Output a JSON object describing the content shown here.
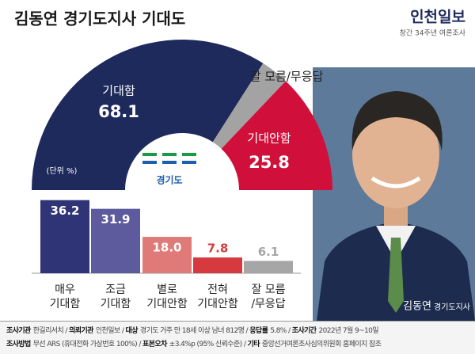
{
  "header": {
    "title": "김동연 경기도지사 기대도",
    "brand": "인천일보",
    "brand_sub": "창간 34주년 여론조사"
  },
  "chart_data": [
    {
      "type": "donut",
      "categories": [
        "기대함",
        "잘 모름/무응답",
        "기대안함"
      ],
      "values": [
        68.1,
        6.1,
        25.8
      ],
      "colors": [
        "#1f2a5c",
        "#a3a3a3",
        "#d0103a"
      ],
      "unit_note": "(단위 %)",
      "center_label": "경기도"
    },
    {
      "type": "bar",
      "categories": [
        [
          "매우",
          "기대함"
        ],
        [
          "조금",
          "기대함"
        ],
        [
          "별로",
          "기대안함"
        ],
        [
          "전혀",
          "기대안함"
        ],
        [
          "잘 모름",
          "/무응답"
        ]
      ],
      "values": [
        36.2,
        31.9,
        18.0,
        7.8,
        6.1
      ],
      "value_labels": [
        "36.2",
        "31.9",
        "18.0",
        "7.8",
        "6.1"
      ],
      "colors": [
        "#2f3476",
        "#5d5b9d",
        "#e07a78",
        "#d73a3e",
        "#a6a6a6"
      ]
    }
  ],
  "photo": {
    "name": "김동연",
    "role": "경기도지사"
  },
  "footer": [
    [
      {
        "label": "조사기관",
        "text": "한길리서치"
      },
      {
        "label": "의뢰기관",
        "text": "인천일보"
      },
      {
        "label": "대상",
        "text": "경기도 거주 만 18세 이상 남녀 812명"
      },
      {
        "label": "응답률",
        "text": "5.8%"
      },
      {
        "label": "조사기간",
        "text": "2022년 7월 9~10일"
      }
    ],
    [
      {
        "label": "조사방법",
        "text": "무선 ARS (휴대전화 가상번호 100%)"
      },
      {
        "label": "표본오차",
        "text": "±3.4%p (95% 신뢰수준)"
      },
      {
        "label": "기타",
        "text": "중앙선거여론조사심의위원회 홈페이지 참조"
      }
    ]
  ]
}
